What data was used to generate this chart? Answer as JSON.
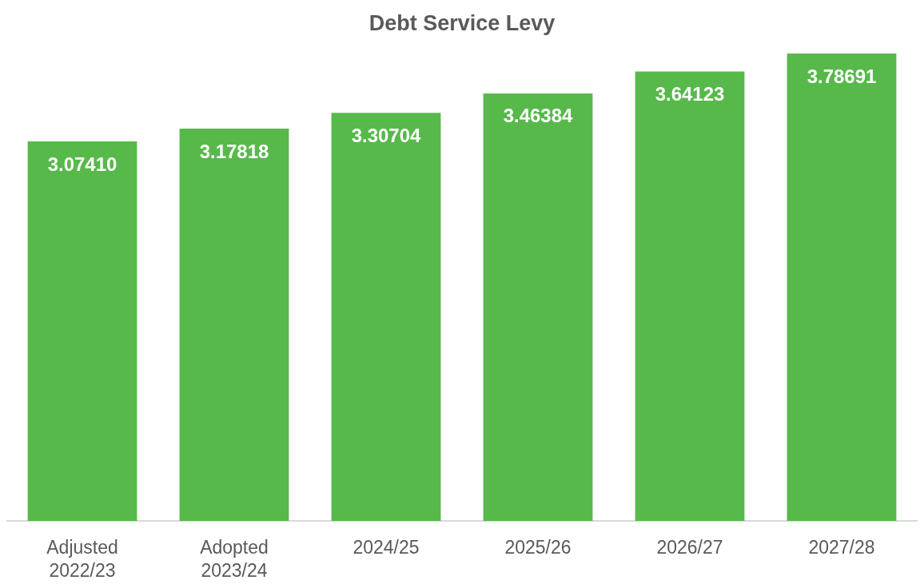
{
  "chart_data": {
    "type": "bar",
    "title": "Debt Service Levy",
    "categories": [
      "Adjusted\n2022/23",
      "Adopted\n2023/24",
      "2024/25",
      "2025/26",
      "2026/27",
      "2027/28"
    ],
    "values": [
      3.0741,
      3.17818,
      3.30704,
      3.46384,
      3.64123,
      3.78691
    ],
    "value_labels": [
      "3.07410",
      "3.17818",
      "3.30704",
      "3.46384",
      "3.64123",
      "3.78691"
    ],
    "color": "#57b94a"
  }
}
